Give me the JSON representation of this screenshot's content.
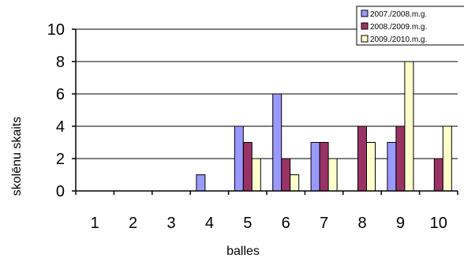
{
  "chart_data": {
    "type": "bar",
    "title": "",
    "xlabel": "balles",
    "ylabel": "skolēnu skaits",
    "categories": [
      "1",
      "2",
      "3",
      "4",
      "5",
      "6",
      "7",
      "8",
      "9",
      "10"
    ],
    "ylim": [
      0,
      10
    ],
    "yticks": [
      "0",
      "2",
      "4",
      "6",
      "8",
      "10"
    ],
    "grid": "horizontal",
    "legend_position": "top-right",
    "series": [
      {
        "name": "2007./2008.m.g.",
        "color": "#9999ff",
        "values": [
          0,
          0,
          0,
          1,
          4,
          6,
          3,
          0,
          3,
          0
        ]
      },
      {
        "name": "2008./2009.m.g.",
        "color": "#993366",
        "values": [
          0,
          0,
          0,
          0,
          3,
          2,
          3,
          4,
          4,
          2
        ]
      },
      {
        "name": "2009./2010.m.g.",
        "color": "#ffffcc",
        "values": [
          0,
          0,
          0,
          0,
          2,
          1,
          2,
          3,
          8,
          4
        ]
      }
    ]
  }
}
